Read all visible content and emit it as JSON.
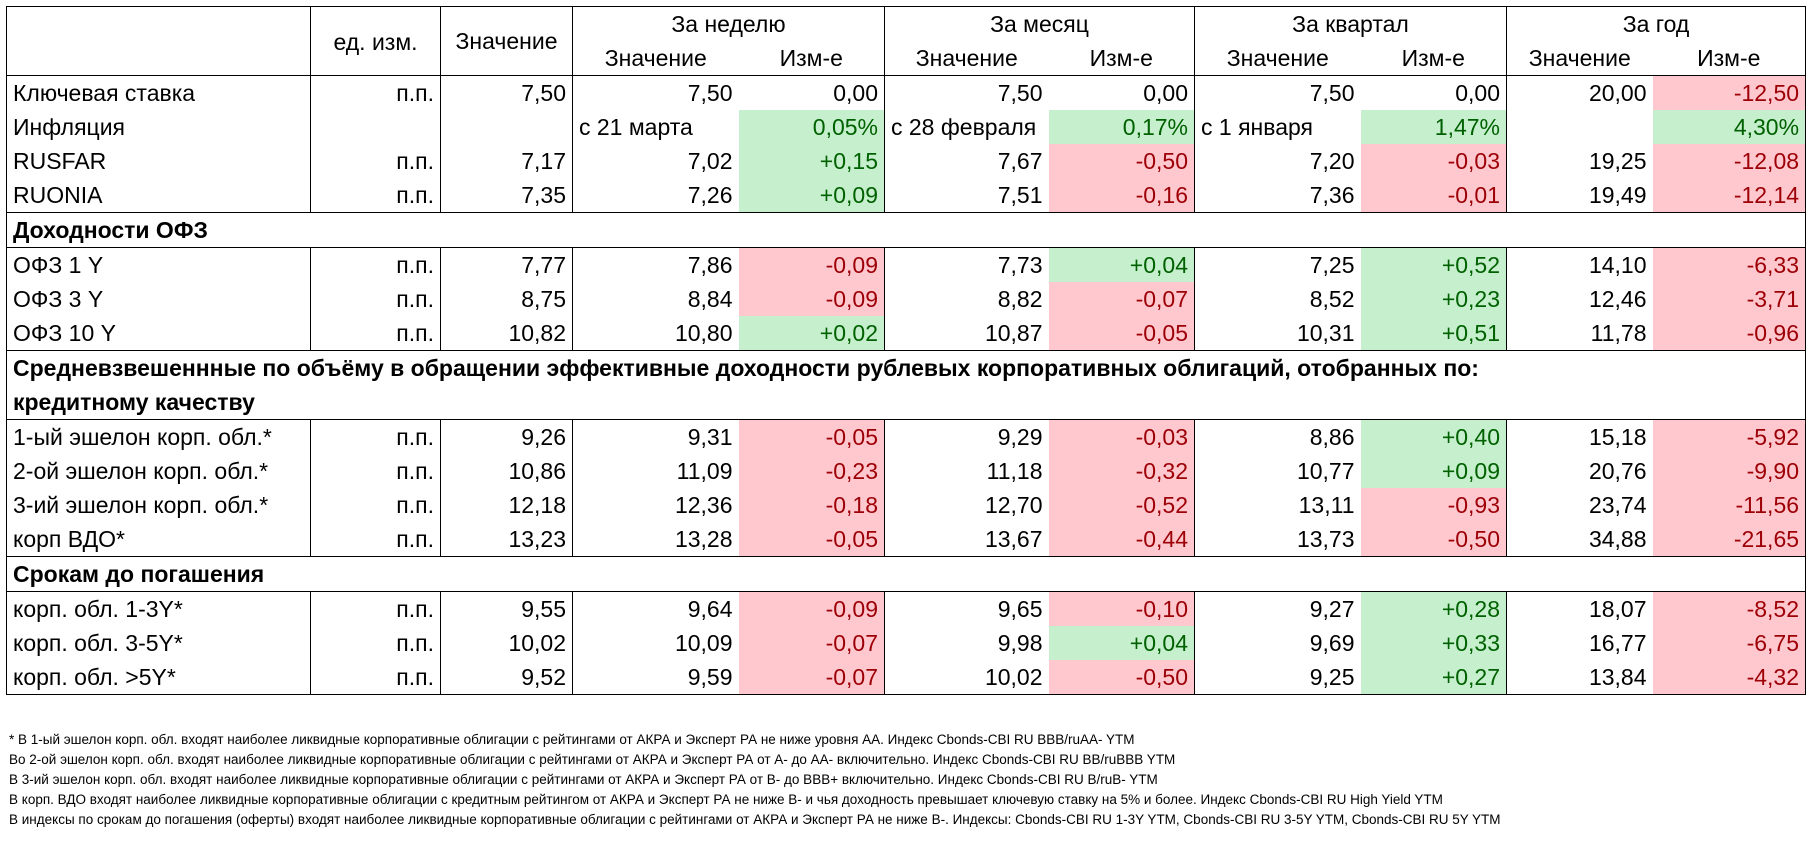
{
  "header": {
    "unit": "ед. изм.",
    "value": "Значение",
    "groups": [
      "За неделю",
      "За месяц",
      "За квартал",
      "За год"
    ],
    "sub_value": "Значение",
    "sub_change": "Изм-е"
  },
  "rows_top": [
    {
      "name": "Ключевая ставка",
      "unit": "п.п.",
      "value": "7,50",
      "w": "7,50",
      "wc": "0,00",
      "wcs": "none",
      "m": "7,50",
      "mc": "0,00",
      "mcs": "none",
      "q": "7,50",
      "qc": "0,00",
      "qcs": "none",
      "y": "20,00",
      "yc": "-12,50",
      "ycs": "neg"
    },
    {
      "name": "Инфляция",
      "unit": "",
      "value": "",
      "w": "с 21 марта",
      "wc": "0,05%",
      "wcs": "pos",
      "m": "с 28 февраля",
      "mc": "0,17%",
      "mcs": "pos",
      "q": "с 1 января",
      "qc": "1,47%",
      "qcs": "pos",
      "y": "",
      "yc": "4,30%",
      "ycs": "pos",
      "left_dates": true
    },
    {
      "name": "RUSFAR",
      "unit": "п.п.",
      "value": "7,17",
      "w": "7,02",
      "wc": "+0,15",
      "wcs": "pos",
      "m": "7,67",
      "mc": "-0,50",
      "mcs": "neg",
      "q": "7,20",
      "qc": "-0,03",
      "qcs": "neg",
      "y": "19,25",
      "yc": "-12,08",
      "ycs": "neg"
    },
    {
      "name": "RUONIA",
      "unit": "п.п.",
      "value": "7,35",
      "w": "7,26",
      "wc": "+0,09",
      "wcs": "pos",
      "m": "7,51",
      "mc": "-0,16",
      "mcs": "neg",
      "q": "7,36",
      "qc": "-0,01",
      "qcs": "neg",
      "y": "19,49",
      "yc": "-12,14",
      "ycs": "neg"
    }
  ],
  "section_ofz": "Доходности ОФЗ",
  "rows_ofz": [
    {
      "name": "ОФЗ 1 Y",
      "unit": "п.п.",
      "value": "7,77",
      "w": "7,86",
      "wc": "-0,09",
      "wcs": "neg",
      "m": "7,73",
      "mc": "+0,04",
      "mcs": "pos",
      "q": "7,25",
      "qc": "+0,52",
      "qcs": "pos",
      "y": "14,10",
      "yc": "-6,33",
      "ycs": "neg"
    },
    {
      "name": "ОФЗ 3 Y",
      "unit": "п.п.",
      "value": "8,75",
      "w": "8,84",
      "wc": "-0,09",
      "wcs": "neg",
      "m": "8,82",
      "mc": "-0,07",
      "mcs": "neg",
      "q": "8,52",
      "qc": "+0,23",
      "qcs": "pos",
      "y": "12,46",
      "yc": "-3,71",
      "ycs": "neg"
    },
    {
      "name": "ОФЗ 10 Y",
      "unit": "п.п.",
      "value": "10,82",
      "w": "10,80",
      "wc": "+0,02",
      "wcs": "pos",
      "m": "10,87",
      "mc": "-0,05",
      "mcs": "neg",
      "q": "10,31",
      "qc": "+0,51",
      "qcs": "pos",
      "y": "11,78",
      "yc": "-0,96",
      "ycs": "neg"
    }
  ],
  "section_corp_1": "Средневзвешеннные по объёму в обращении эффективные доходности рублевых корпоративных облигаций, отобранных по:",
  "section_corp_2": "кредитному качеству",
  "rows_credit": [
    {
      "name": "1-ый эшелон корп. обл.*",
      "unit": "п.п.",
      "value": "9,26",
      "w": "9,31",
      "wc": "-0,05",
      "wcs": "neg",
      "m": "9,29",
      "mc": "-0,03",
      "mcs": "neg",
      "q": "8,86",
      "qc": "+0,40",
      "qcs": "pos",
      "y": "15,18",
      "yc": "-5,92",
      "ycs": "neg"
    },
    {
      "name": "2-ой эшелон корп. обл.*",
      "unit": "п.п.",
      "value": "10,86",
      "w": "11,09",
      "wc": "-0,23",
      "wcs": "neg",
      "m": "11,18",
      "mc": "-0,32",
      "mcs": "neg",
      "q": "10,77",
      "qc": "+0,09",
      "qcs": "pos",
      "y": "20,76",
      "yc": "-9,90",
      "ycs": "neg"
    },
    {
      "name": "3-ий эшелон корп. обл.*",
      "unit": "п.п.",
      "value": "12,18",
      "w": "12,36",
      "wc": "-0,18",
      "wcs": "neg",
      "m": "12,70",
      "mc": "-0,52",
      "mcs": "neg",
      "q": "13,11",
      "qc": "-0,93",
      "qcs": "neg",
      "y": "23,74",
      "yc": "-11,56",
      "ycs": "neg"
    },
    {
      "name": "корп ВДО*",
      "unit": "п.п.",
      "value": "13,23",
      "w": "13,28",
      "wc": "-0,05",
      "wcs": "neg",
      "m": "13,67",
      "mc": "-0,44",
      "mcs": "neg",
      "q": "13,73",
      "qc": "-0,50",
      "qcs": "neg",
      "y": "34,88",
      "yc": "-21,65",
      "ycs": "neg"
    }
  ],
  "section_maturity": "Срокам до погашения",
  "rows_maturity": [
    {
      "name": "корп. обл. 1-3Y*",
      "unit": "п.п.",
      "value": "9,55",
      "w": "9,64",
      "wc": "-0,09",
      "wcs": "neg",
      "m": "9,65",
      "mc": "-0,10",
      "mcs": "neg",
      "q": "9,27",
      "qc": "+0,28",
      "qcs": "pos",
      "y": "18,07",
      "yc": "-8,52",
      "ycs": "neg"
    },
    {
      "name": "корп. обл. 3-5Y*",
      "unit": "п.п.",
      "value": "10,02",
      "w": "10,09",
      "wc": "-0,07",
      "wcs": "neg",
      "m": "9,98",
      "mc": "+0,04",
      "mcs": "pos",
      "q": "9,69",
      "qc": "+0,33",
      "qcs": "pos",
      "y": "16,77",
      "yc": "-6,75",
      "ycs": "neg"
    },
    {
      "name": "корп. обл. >5Y*",
      "unit": "п.п.",
      "value": "9,52",
      "w": "9,59",
      "wc": "-0,07",
      "wcs": "neg",
      "m": "10,02",
      "mc": "-0,50",
      "mcs": "neg",
      "q": "9,25",
      "qc": "+0,27",
      "qcs": "pos",
      "y": "13,84",
      "yc": "-4,32",
      "ycs": "neg"
    }
  ],
  "notes": [
    "* В 1-ый эшелон корп. обл. входят наиболее ликвидные корпоративные облигации с рейтингами от АКРА и Эксперт РА не ниже уровня АА. Индекс Cbonds-CBI RU BBB/ruAA- YTM",
    "Во 2-ой эшелон корп. обл. входят наиболее ликвидные корпоративные облигации с рейтингами от АКРА и Эксперт РА от А- до АА- включительно.  Индекс Cbonds-CBI RU BB/ruBBB YTM",
    "В 3-ий эшелон корп. обл. входят наиболее ликвидные корпоративные облигации с рейтингами от АКРА и Эксперт РА от В- до ВВВ+ включительно.  Индекс Cbonds-CBI RU B/ruB- YTM",
    "В корп. ВДО входят наиболее ликвидные корпоративные облигации с кредитным рейтингом от АКРА и Эксперт РА не ниже В- и чья доходность превышает ключевую ставку на 5% и более. Индекс  Cbonds-CBI RU High Yield YTM",
    "В индексы по срокам до погашения (оферты) входят наиболее ликвидные корпоративные облигации с рейтингами от АКРА и Эксперт РА не ниже В-. Индексы:  Cbonds-CBI RU 1-3Y YTM, Cbonds-CBI RU 3-5Y YTM, Cbonds-CBI RU 5Y YTM"
  ],
  "colors": {
    "pos_bg": "#c6efce",
    "pos_fg": "#006100",
    "neg_bg": "#ffc7ce",
    "neg_fg": "#9c0006"
  }
}
